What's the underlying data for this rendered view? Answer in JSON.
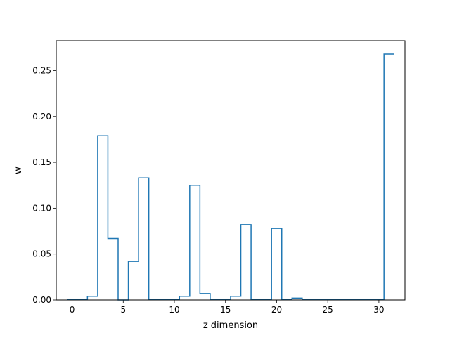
{
  "chart_data": {
    "type": "step",
    "xlabel": "z dimension",
    "ylabel": "w",
    "xlim": [
      -1.55,
      32.55
    ],
    "ylim": [
      0,
      0.2825
    ],
    "xticks": [
      0,
      5,
      10,
      15,
      20,
      25,
      30
    ],
    "yticks": [
      0.0,
      0.05,
      0.1,
      0.15,
      0.2,
      0.25
    ],
    "x": [
      0,
      1,
      2,
      3,
      4,
      5,
      6,
      7,
      8,
      9,
      10,
      11,
      12,
      13,
      14,
      15,
      16,
      17,
      18,
      19,
      20,
      21,
      22,
      23,
      24,
      25,
      26,
      27,
      28,
      29,
      30,
      31
    ],
    "values": [
      0.0005,
      0.0005,
      0.004,
      0.179,
      0.067,
      0.0,
      0.042,
      0.133,
      0.0005,
      0.0005,
      0.001,
      0.004,
      0.125,
      0.007,
      0.0005,
      0.001,
      0.004,
      0.082,
      0.0005,
      0.0005,
      0.078,
      0.0005,
      0.002,
      0.0005,
      0.0005,
      0.0005,
      0.0005,
      0.0005,
      0.001,
      0.0005,
      0.0005,
      0.268
    ],
    "line_color": "#1f77b4",
    "grid": false,
    "legend": "none"
  }
}
